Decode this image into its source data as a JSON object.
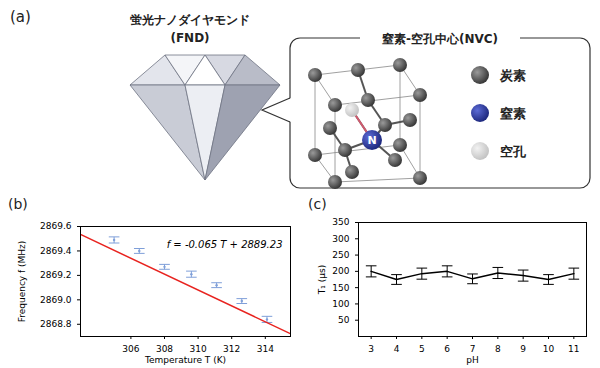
{
  "panel_a": {
    "label": "(a)",
    "diamond": {
      "title": "蛍光ナノダイヤモンド",
      "subtitle": "(FND)"
    },
    "callout": {
      "title": "窒素-空孔中心(NVC)",
      "atom_label": "N",
      "legend": [
        {
          "label": "炭素",
          "color": "#3a3a3a"
        },
        {
          "label": "窒素",
          "color": "#1f2a80"
        },
        {
          "label": "空孔",
          "color": "#c4c4c4"
        }
      ]
    }
  },
  "chart_data": [
    {
      "type": "scatter",
      "title": "(b)",
      "xlabel": "Temperature T (K)",
      "ylabel": "Frequency f (MHz)",
      "xlim": [
        303,
        315.5
      ],
      "ylim": [
        2868.7,
        2869.6
      ],
      "xticks": [
        306,
        308,
        310,
        312,
        314
      ],
      "yticks": [
        2868.8,
        {
          "value": 2869,
          "label": "2869.0"
        },
        2869.2,
        2869.4,
        2869.6
      ],
      "annotations": [
        "f = -0.065 T + 2889.23"
      ],
      "series": [
        {
          "type": "scatter",
          "color": "#7f9fd9",
          "x": [
            305,
            306.5,
            308,
            309.6,
            311.1,
            312.6,
            314.1
          ],
          "values": [
            2869.49,
            2869.4,
            2869.27,
            2869.21,
            2869.12,
            2868.99,
            2868.84
          ],
          "errors": [
            0.025,
            0.02,
            0.02,
            0.025,
            0.02,
            0.02,
            0.025
          ]
        },
        {
          "type": "line",
          "color": "#e8231f",
          "x": [
            303,
            315.5
          ],
          "values": [
            2869.535,
            2868.7225
          ]
        }
      ]
    },
    {
      "type": "line",
      "title": "(c)",
      "xlabel": "pH",
      "ylabel": "T₁ (μs)",
      "xlim": [
        2.5,
        11.5
      ],
      "ylim": [
        0,
        350
      ],
      "xticks": [
        3,
        4,
        5,
        6,
        7,
        8,
        9,
        10,
        11
      ],
      "yticks": [
        50,
        100,
        150,
        200,
        250,
        300,
        350
      ],
      "series": [
        {
          "type": "line",
          "color": "#000000",
          "x": [
            3,
            4,
            5,
            6,
            7,
            8,
            9,
            10,
            11
          ],
          "values": [
            200,
            175,
            193,
            200,
            177,
            195,
            187,
            175,
            193
          ],
          "errors": [
            17,
            15,
            17,
            17,
            15,
            17,
            17,
            15,
            17
          ]
        }
      ]
    }
  ]
}
